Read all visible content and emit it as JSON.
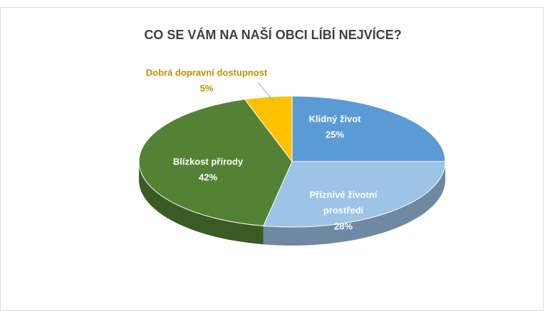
{
  "chart_data": {
    "type": "pie3d",
    "title": "CO SE VÁM NA NAŠÍ OBCI LÍBÍ NEJVÍCE?",
    "categories": [
      "Klidný život",
      "Příznivé životní prostředí",
      "Blízkost přírody",
      "Dobrá dopravní dostupnost"
    ],
    "values": [
      25,
      28,
      42,
      5
    ],
    "value_labels": [
      "25%",
      "28%",
      "42%",
      "5%"
    ],
    "colors": [
      "#5b9bd5",
      "#9dc3e6",
      "#548235",
      "#ffc000"
    ]
  }
}
